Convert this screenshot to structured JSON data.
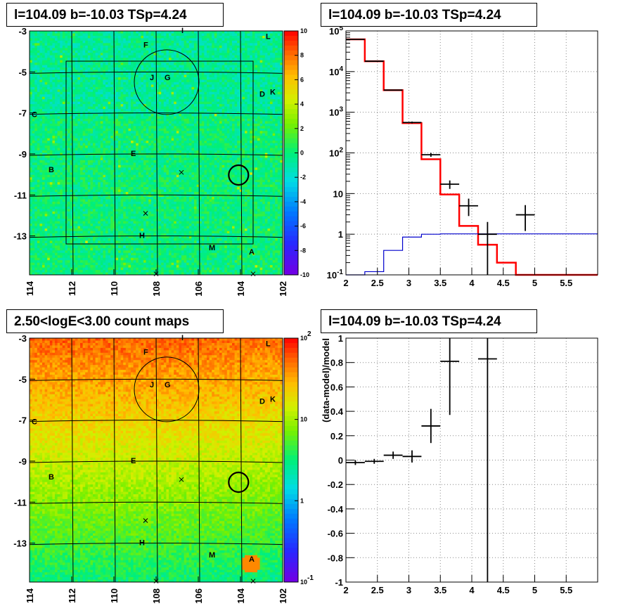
{
  "panels": {
    "tl": {
      "title": "l=104.09 b=-10.03 TSp=4.24"
    },
    "tr": {
      "title": "l=104.09 b=-10.03 TSp=4.24"
    },
    "bl": {
      "title": "2.50<logE<3.00 count maps"
    },
    "br": {
      "title": "l=104.09 b=-10.03 TSp=4.24"
    }
  },
  "chart_data": [
    {
      "type": "heatmap",
      "panel": "tl",
      "title": "l=104.09 b=-10.03 TSp=4.24",
      "xlim": [
        114,
        102
      ],
      "ylim": [
        -14.9,
        -3
      ],
      "x_ticks": [
        "114",
        "112",
        "110",
        "108",
        "106",
        "104",
        "102"
      ],
      "y_ticks": [
        "-3",
        "-5",
        "-7",
        "-9",
        "-11",
        "-13"
      ],
      "colorbar": {
        "min": -10,
        "max": 10,
        "ticks": [
          "10",
          "8",
          "6",
          "4",
          "2",
          "0",
          "-2",
          "-4",
          "-6",
          "-8",
          "-10"
        ]
      },
      "source_labels": [
        {
          "text": "I",
          "l": 106.8,
          "b": -3.1
        },
        {
          "text": "L",
          "l": 102.8,
          "b": -3.4
        },
        {
          "text": "F",
          "l": 108.6,
          "b": -3.8
        },
        {
          "text": "J",
          "l": 108.3,
          "b": -5.4
        },
        {
          "text": "G",
          "l": 107.6,
          "b": -5.4
        },
        {
          "text": "D",
          "l": 103.1,
          "b": -6.2
        },
        {
          "text": "K",
          "l": 102.6,
          "b": -6.1
        },
        {
          "text": "C",
          "l": 113.9,
          "b": -7.2
        },
        {
          "text": "E",
          "l": 109.2,
          "b": -9.1
        },
        {
          "text": "B",
          "l": 113.1,
          "b": -9.9
        },
        {
          "text": "H",
          "l": 108.8,
          "b": -13.1
        },
        {
          "text": "M",
          "l": 105.5,
          "b": -13.7
        },
        {
          "text": "A",
          "l": 103.6,
          "b": -13.9
        }
      ]
    },
    {
      "type": "line",
      "panel": "tr",
      "title": "l=104.09 b=-10.03 TSp=4.24",
      "yscale": "log",
      "xlim": [
        2,
        6
      ],
      "ylim": [
        0.1,
        100000
      ],
      "x_ticks": [
        "2",
        "2.5",
        "3",
        "3.5",
        "4",
        "4.5",
        "5",
        "5.5"
      ],
      "y_ticks": [
        "10^-1",
        "1",
        "10",
        "10^2",
        "10^3",
        "10^4",
        "10^5"
      ],
      "bin_edges": [
        2.0,
        2.3,
        2.6,
        2.9,
        3.2,
        3.5,
        3.8,
        4.1,
        4.4,
        4.7,
        5.0,
        6.0
      ],
      "series": [
        {
          "color": "#ff0000",
          "values": [
            62000,
            18000,
            3500,
            540,
            70,
            9.5,
            1.6,
            0.55,
            0.2,
            0.1,
            0.1
          ]
        },
        {
          "color": "#0000cc",
          "values": [
            0.1,
            0.12,
            0.4,
            0.85,
            1.0,
            1.02,
            1.02,
            1.02,
            1.02,
            1.02,
            1.02
          ]
        }
      ],
      "points": [
        {
          "x": 2.15,
          "y": 62000,
          "xerr": 0.15,
          "ylo": 61500,
          "yhi": 62500
        },
        {
          "x": 2.45,
          "y": 18000,
          "xerr": 0.15,
          "ylo": 17800,
          "yhi": 18200
        },
        {
          "x": 2.75,
          "y": 3500,
          "xerr": 0.15,
          "ylo": 3400,
          "yhi": 3600
        },
        {
          "x": 3.05,
          "y": 560,
          "xerr": 0.15,
          "ylo": 530,
          "yhi": 590
        },
        {
          "x": 3.35,
          "y": 90,
          "xerr": 0.15,
          "ylo": 80,
          "yhi": 100
        },
        {
          "x": 3.65,
          "y": 17,
          "xerr": 0.15,
          "ylo": 13,
          "yhi": 21
        },
        {
          "x": 3.95,
          "y": 5,
          "xerr": 0.15,
          "ylo": 2.8,
          "yhi": 7.5
        },
        {
          "x": 4.25,
          "y": 1,
          "xerr": 0.15,
          "ylo": 0.1,
          "yhi": 2
        },
        {
          "x": 4.85,
          "y": 3,
          "xerr": 0.15,
          "ylo": 1.2,
          "yhi": 5.2
        }
      ]
    },
    {
      "type": "heatmap",
      "panel": "bl",
      "title": "2.50<logE<3.00 count maps",
      "xlim": [
        114,
        102
      ],
      "ylim": [
        -14.9,
        -3
      ],
      "x_ticks": [
        "114",
        "112",
        "110",
        "108",
        "106",
        "104",
        "102"
      ],
      "y_ticks": [
        "-3",
        "-5",
        "-7",
        "-9",
        "-11",
        "-13"
      ],
      "colorbar": {
        "scale": "log",
        "min": 0.1,
        "max": 100,
        "ticks": [
          "10^2",
          "10",
          "1",
          "10^-1"
        ]
      },
      "source_labels": [
        {
          "text": "I",
          "l": 106.8,
          "b": -3.1
        },
        {
          "text": "L",
          "l": 102.8,
          "b": -3.4
        },
        {
          "text": "F",
          "l": 108.6,
          "b": -3.8
        },
        {
          "text": "J",
          "l": 108.3,
          "b": -5.4
        },
        {
          "text": "G",
          "l": 107.6,
          "b": -5.4
        },
        {
          "text": "D",
          "l": 103.1,
          "b": -6.2
        },
        {
          "text": "K",
          "l": 102.6,
          "b": -6.1
        },
        {
          "text": "C",
          "l": 113.9,
          "b": -7.2
        },
        {
          "text": "E",
          "l": 109.2,
          "b": -9.1
        },
        {
          "text": "B",
          "l": 113.1,
          "b": -9.9
        },
        {
          "text": "H",
          "l": 108.8,
          "b": -13.1
        },
        {
          "text": "M",
          "l": 105.5,
          "b": -13.7
        },
        {
          "text": "A",
          "l": 103.6,
          "b": -13.9
        }
      ]
    },
    {
      "type": "scatter",
      "panel": "br",
      "title": "l=104.09 b=-10.03 TSp=4.24",
      "ylabel": "(data-model)/model",
      "xlim": [
        2,
        6
      ],
      "ylim": [
        -1,
        1
      ],
      "x_ticks": [
        "2",
        "2.5",
        "3",
        "3.5",
        "4",
        "4.5",
        "5",
        "5.5"
      ],
      "y_ticks": [
        "-1",
        "-0.8",
        "-0.6",
        "-0.4",
        "-0.2",
        "0",
        "0.2",
        "0.4",
        "0.6",
        "0.8",
        "1"
      ],
      "points": [
        {
          "x": 2.15,
          "y": -0.02,
          "xerr": 0.15,
          "ylo": -0.04,
          "yhi": 0.0
        },
        {
          "x": 2.45,
          "y": -0.01,
          "xerr": 0.15,
          "ylo": -0.03,
          "yhi": 0.01
        },
        {
          "x": 2.75,
          "y": 0.04,
          "xerr": 0.15,
          "ylo": 0.01,
          "yhi": 0.07
        },
        {
          "x": 3.05,
          "y": 0.03,
          "xerr": 0.15,
          "ylo": -0.02,
          "yhi": 0.08
        },
        {
          "x": 3.35,
          "y": 0.28,
          "xerr": 0.15,
          "ylo": 0.14,
          "yhi": 0.42
        },
        {
          "x": 3.65,
          "y": 0.81,
          "xerr": 0.15,
          "ylo": 0.37,
          "yhi": 1.0
        },
        {
          "x": 4.25,
          "y": 0.83,
          "xerr": 0.15,
          "ylo": -1.0,
          "yhi": 1.0
        }
      ]
    }
  ]
}
